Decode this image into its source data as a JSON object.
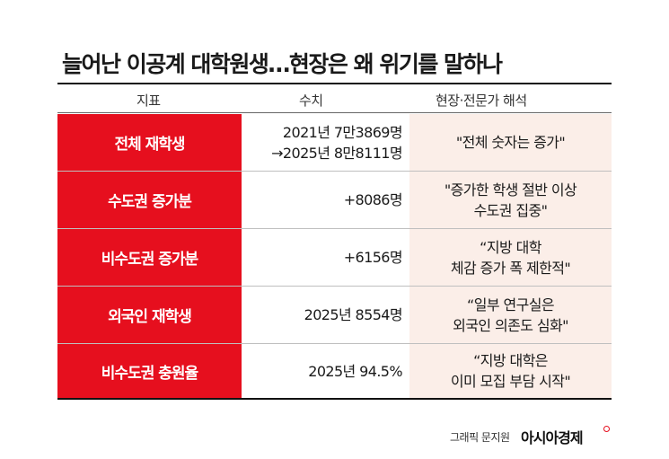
{
  "title": "늘어난 이공계 대학원생…현장은 왜 위기를 말하나",
  "headers": {
    "indicator": "지표",
    "value": "수치",
    "comment": "현장·전문가 해석"
  },
  "rows": [
    {
      "indicator": "전체 재학생",
      "value": [
        "2021년 7만3869명",
        "→2025년 8만8111명"
      ],
      "comment": [
        "\"전체 숫자는 증가\""
      ]
    },
    {
      "indicator": "수도권 증가분",
      "value": [
        "+8086명"
      ],
      "comment": [
        "\"증가한 학생 절반 이상",
        "수도권 집중\""
      ]
    },
    {
      "indicator": "비수도권 증가분",
      "value": [
        "+6156명"
      ],
      "comment": [
        "“지방 대학",
        "체감 증가 폭 제한적\""
      ]
    },
    {
      "indicator": "외국인 재학생",
      "value": [
        "2025년 8554명"
      ],
      "comment": [
        "“일부 연구실은",
        "외국인 의존도 심화\""
      ]
    },
    {
      "indicator": "비수도권 충원율",
      "value": [
        "2025년 94.5%"
      ],
      "comment": [
        "“지방 대학은",
        "이미 모집 부담 시작\""
      ]
    }
  ],
  "footer": {
    "credit": "그래픽 문지원",
    "brand": "아시아경제"
  },
  "colors": {
    "accent_red": "#e60f1e",
    "comment_bg": "#fbeee8"
  }
}
